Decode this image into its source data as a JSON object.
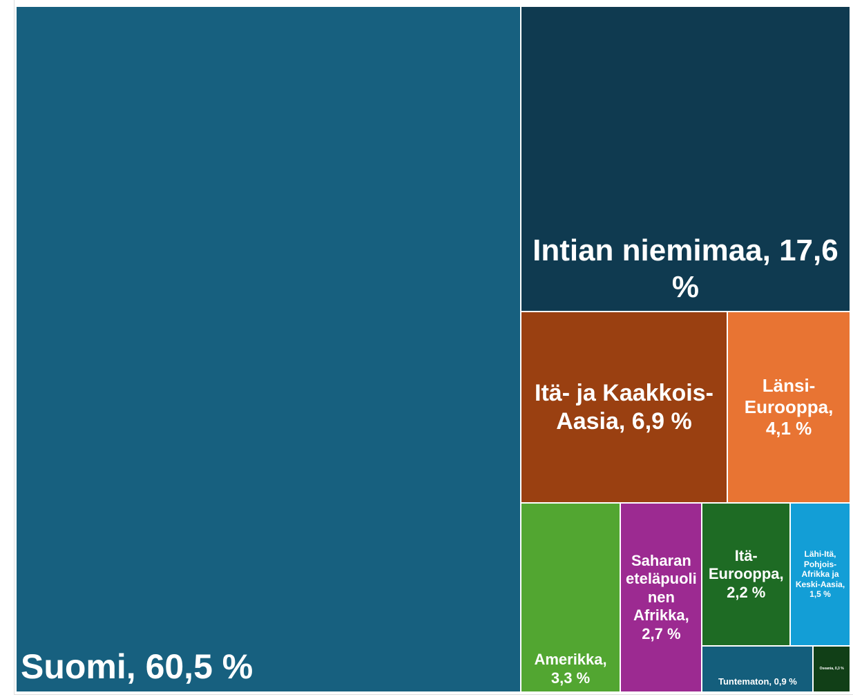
{
  "chart_data": {
    "type": "treemap",
    "values": [
      60.5,
      17.6,
      6.9,
      4.1,
      3.3,
      2.7,
      2.2,
      1.5,
      0.9,
      0.3
    ],
    "value_labels": [
      "Suomi, 60,5 %",
      "Intian niemimaa, 17,6 %",
      "Itä- ja Kaakkois-Aasia, 6,9 %",
      "Länsi-Eurooppa, 4,1 %",
      "Amerikka, 3,3 %",
      "Saharan eteläpuolinen Afrikka, 2,7 %",
      "Itä-Eurooppa, 2,2 %",
      "Lähi-Itä, Pohjois-Afrikka ja Keski-Aasia, 1,5 %",
      "Tuntematon, 0,9 %",
      "Oseania, 0,3 %"
    ],
    "colors": [
      "#17607f",
      "#0f3a50",
      "#9a4011",
      "#e87433",
      "#52a631",
      "#9c2a91",
      "#1e6b24",
      "#139ed6",
      "#145e7c",
      "#113f17"
    ]
  }
}
